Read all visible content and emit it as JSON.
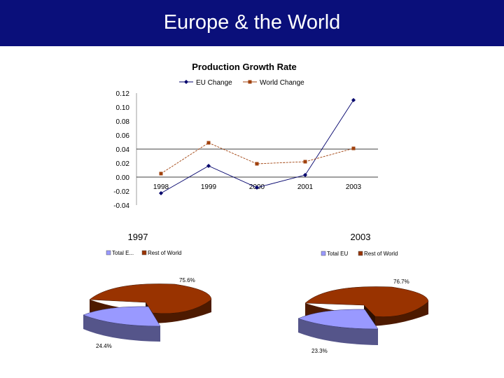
{
  "header": {
    "title": "Europe & the World"
  },
  "colors": {
    "header_bg": "#0a0f7a",
    "eu": "#00006b",
    "world": "#a0410d",
    "pie_eu": "#9999ff",
    "pie_eu_side": "#55558a",
    "pie_rest": "#993300",
    "pie_rest_side": "#4d1a00"
  },
  "chart_data": [
    {
      "type": "line",
      "title": "Production Growth Rate",
      "categories": [
        "1998",
        "1999",
        "2000",
        "2001",
        "2003"
      ],
      "series": [
        {
          "name": "EU Change",
          "values": [
            -0.023,
            0.016,
            -0.015,
            0.003,
            0.11
          ]
        },
        {
          "name": "World Change",
          "values": [
            0.005,
            0.049,
            0.019,
            0.022,
            0.041
          ]
        }
      ],
      "ylim": [
        -0.04,
        0.12
      ],
      "yticks": [
        "0.12",
        "0.10",
        "0.08",
        "0.06",
        "0.04",
        "0.02",
        "0.00",
        "-0.02",
        "-0.04"
      ],
      "reference_line": 0.04,
      "legend": "top"
    },
    {
      "type": "pie",
      "title": "1997",
      "labels": [
        "Total E...",
        "Rest of World"
      ],
      "values": [
        24.4,
        75.6
      ],
      "value_labels": [
        "24.4%",
        "75.6%"
      ]
    },
    {
      "type": "pie",
      "title": "2003",
      "labels": [
        "Total EU",
        "Rest of World"
      ],
      "values": [
        23.3,
        76.7
      ],
      "value_labels": [
        "23.3%",
        "76.7%"
      ]
    }
  ]
}
